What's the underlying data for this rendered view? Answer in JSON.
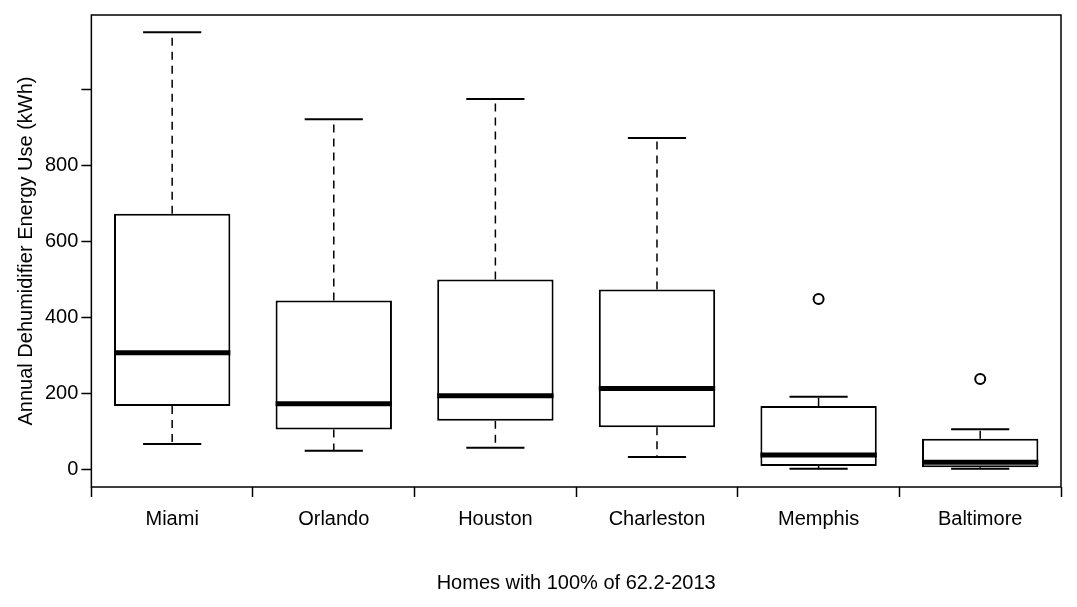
{
  "chart_data": {
    "type": "box",
    "xlabel": "Homes with 100% of 62.2-2013",
    "ylabel": "Annual Dehumidifier Energy Use (kWh)",
    "categories": [
      "Miami",
      "Orlando",
      "Houston",
      "Charleston",
      "Memphis",
      "Baltimore"
    ],
    "boxes": [
      {
        "low": 68,
        "q1": 168,
        "median": 308,
        "q3": 673,
        "high": 1150
      },
      {
        "low": 50,
        "q1": 106,
        "median": 174,
        "q3": 445,
        "high": 921
      },
      {
        "low": 58,
        "q1": 129,
        "median": 195,
        "q3": 500,
        "high": 974
      },
      {
        "low": 34,
        "q1": 112,
        "median": 214,
        "q3": 474,
        "high": 872
      },
      {
        "low": 3,
        "q1": 10,
        "median": 39,
        "q3": 168,
        "high": 192,
        "outliers": [
          449
        ]
      },
      {
        "low": 3,
        "q1": 7,
        "median": 20,
        "q3": 82,
        "high": 107,
        "outliers": [
          239
        ]
      }
    ],
    "ylim": [
      -45,
      1195
    ],
    "yticks": [
      0,
      200,
      400,
      600,
      800,
      {
        "value": 1000,
        "label": null
      }
    ]
  }
}
